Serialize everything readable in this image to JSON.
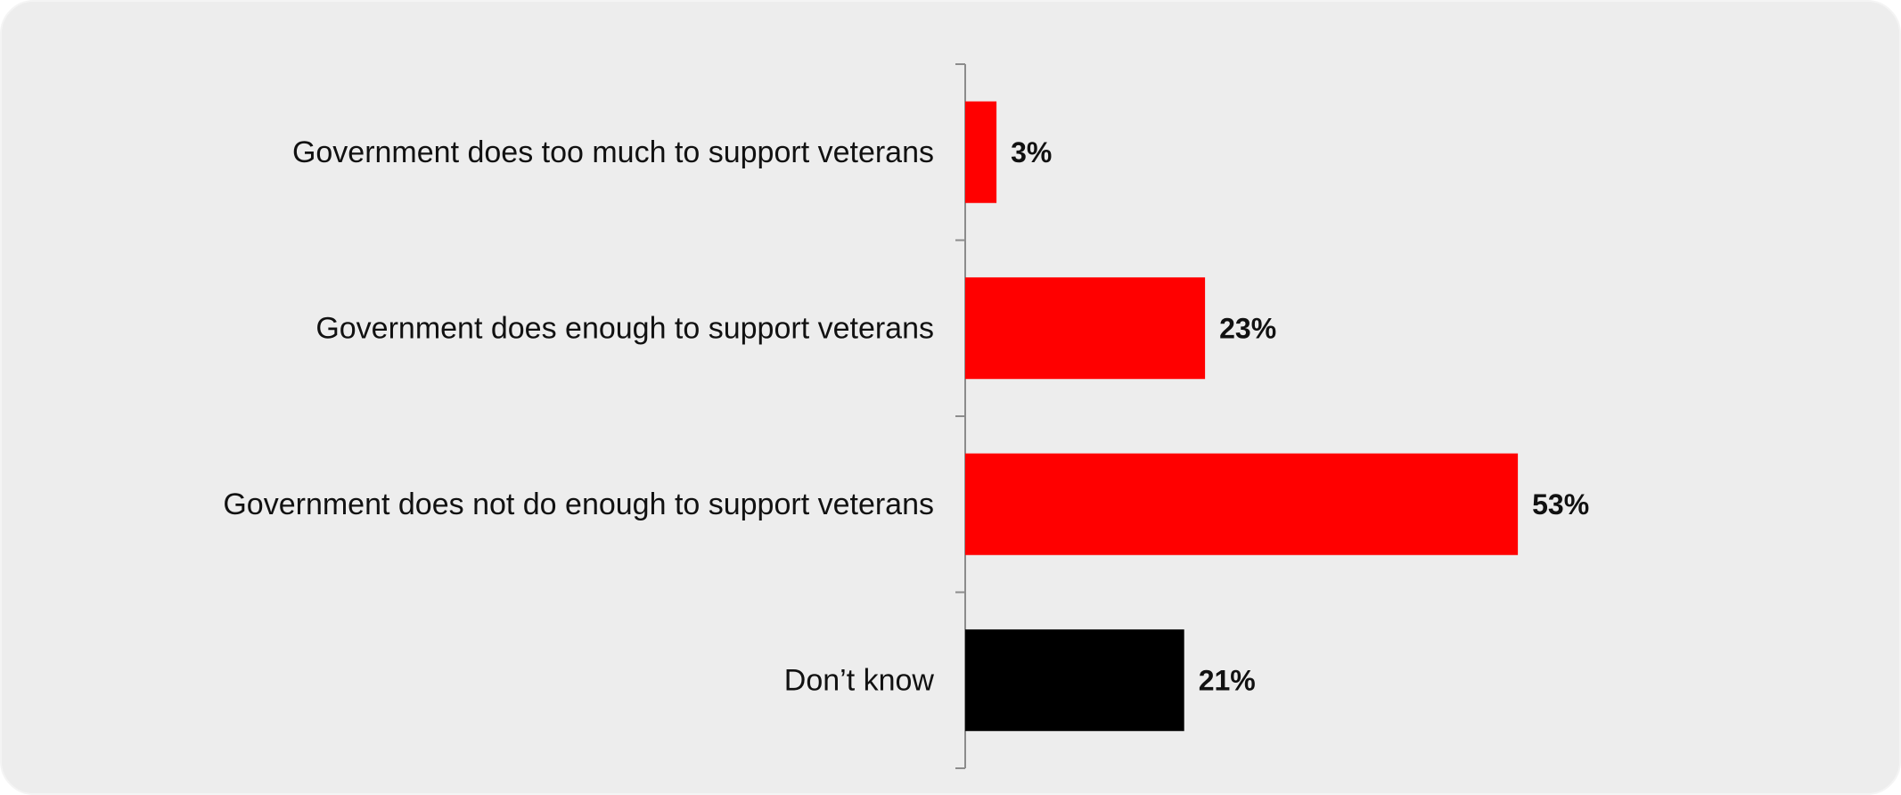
{
  "chart_data": {
    "type": "bar",
    "orientation": "horizontal",
    "title": "",
    "xlabel": "",
    "ylabel": "",
    "categories": [
      "Government does too much to support veterans",
      "Government does enough to support veterans",
      "Government does not do enough to support veterans",
      "Don’t know"
    ],
    "values": [
      3,
      23,
      53,
      21
    ],
    "value_labels": [
      "3%",
      "23%",
      "53%",
      "21%"
    ],
    "bar_colors": [
      "#ff0000",
      "#ff0000",
      "#ff0000",
      "#000000"
    ],
    "xlim": [
      0,
      100
    ],
    "grid": false,
    "legend": "none",
    "background_color": "#ededed"
  }
}
